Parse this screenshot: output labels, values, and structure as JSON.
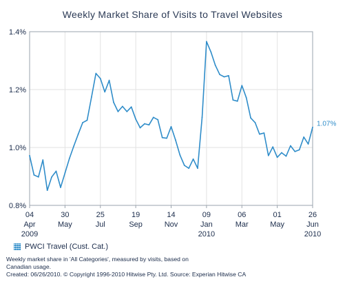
{
  "chart_data": {
    "type": "line",
    "title": "Weekly Market Share of Visits to Travel Websites",
    "xlabel": "",
    "ylabel": "",
    "ylim": [
      0.8,
      1.4
    ],
    "y_ticks": [
      "1.4%",
      "1.2%",
      "1.0%",
      "0.8%"
    ],
    "grid": true,
    "legend_position": "bottom-left",
    "x_tick_labels": [
      {
        "lines": [
          "04",
          "Apr",
          "2009"
        ]
      },
      {
        "lines": [
          "30",
          "May"
        ]
      },
      {
        "lines": [
          "25",
          "Jul"
        ]
      },
      {
        "lines": [
          "19",
          "Sep"
        ]
      },
      {
        "lines": [
          "14",
          "Nov"
        ]
      },
      {
        "lines": [
          "09",
          "Jan",
          "2010"
        ]
      },
      {
        "lines": [
          "06",
          "Mar"
        ]
      },
      {
        "lines": [
          "01",
          "May"
        ]
      },
      {
        "lines": [
          "26",
          "Jun",
          "2010"
        ]
      }
    ],
    "series": [
      {
        "name": "PWCI Travel (Cust. Cat.)",
        "color": "#2e8cc9",
        "end_label": "1.07%",
        "values": [
          0.972,
          0.905,
          0.898,
          0.957,
          0.852,
          0.898,
          0.918,
          0.862,
          0.912,
          0.962,
          1.005,
          1.046,
          1.086,
          1.094,
          1.174,
          1.256,
          1.238,
          1.192,
          1.232,
          1.156,
          1.124,
          1.142,
          1.124,
          1.14,
          1.098,
          1.068,
          1.082,
          1.078,
          1.104,
          1.096,
          1.034,
          1.032,
          1.072,
          1.026,
          0.974,
          0.938,
          0.928,
          0.96,
          0.928,
          1.104,
          1.366,
          1.33,
          1.284,
          1.252,
          1.244,
          1.248,
          1.164,
          1.16,
          1.214,
          1.172,
          1.102,
          1.086,
          1.046,
          1.05,
          0.972,
          1.002,
          0.966,
          0.982,
          0.97,
          1.006,
          0.986,
          0.992,
          1.036,
          1.012,
          1.07
        ]
      }
    ]
  },
  "footer": {
    "line1": "Weekly market share in 'All Categories', measured by visits, based on",
    "line2": "Canadian usage.",
    "line3": "Created: 06/26/2010. © Copyright 1996-2010 Hitwise Pty. Ltd.    Source: Experian Hitwise CA"
  },
  "colors": {
    "series": "#2e8cc9",
    "text": "#1a2b4a",
    "grid": "#e2e2e2"
  }
}
